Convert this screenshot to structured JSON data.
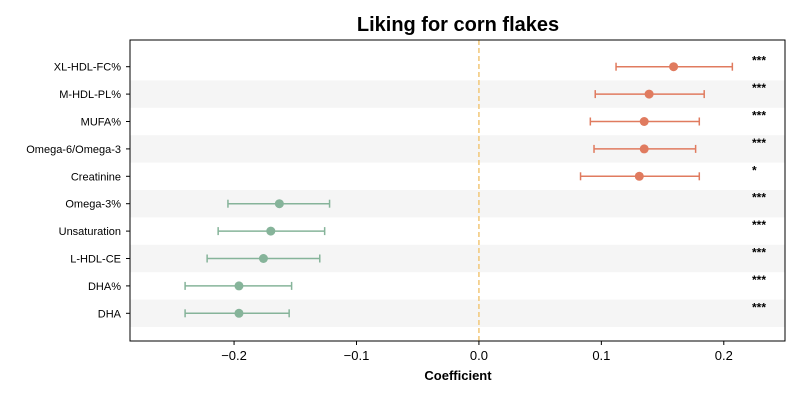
{
  "chart_data": {
    "type": "scatter",
    "title": "Liking for corn flakes",
    "xlabel": "Coefficient",
    "ylabel": "",
    "xlim": [
      -0.285,
      0.25
    ],
    "xticks": [
      {
        "value": -0.2,
        "label": "−0.2"
      },
      {
        "value": -0.1,
        "label": "−0.1"
      },
      {
        "value": 0.0,
        "label": "0.0"
      },
      {
        "value": 0.1,
        "label": "0.1"
      },
      {
        "value": 0.2,
        "label": "0.2"
      }
    ],
    "reference_line": 0.0,
    "row_banding": true,
    "colors": {
      "positive": "#e07b5f",
      "negative": "#86b49a",
      "reference": "#f2c777",
      "band": "#f5f5f5"
    },
    "points": [
      {
        "label": "XL-HDL-FC%",
        "estimate": 0.159,
        "ci_low": 0.112,
        "ci_high": 0.207,
        "significance": "***"
      },
      {
        "label": "M-HDL-PL%",
        "estimate": 0.139,
        "ci_low": 0.095,
        "ci_high": 0.184,
        "significance": "***"
      },
      {
        "label": "MUFA%",
        "estimate": 0.135,
        "ci_low": 0.091,
        "ci_high": 0.18,
        "significance": "***"
      },
      {
        "label": "Omega-6/Omega-3",
        "estimate": 0.135,
        "ci_low": 0.094,
        "ci_high": 0.177,
        "significance": "***"
      },
      {
        "label": "Creatinine",
        "estimate": 0.131,
        "ci_low": 0.083,
        "ci_high": 0.18,
        "significance": "*"
      },
      {
        "label": "Omega-3%",
        "estimate": -0.163,
        "ci_low": -0.205,
        "ci_high": -0.122,
        "significance": "***"
      },
      {
        "label": "Unsaturation",
        "estimate": -0.17,
        "ci_low": -0.213,
        "ci_high": -0.126,
        "significance": "***"
      },
      {
        "label": "L-HDL-CE",
        "estimate": -0.176,
        "ci_low": -0.222,
        "ci_high": -0.13,
        "significance": "***"
      },
      {
        "label": "DHA%",
        "estimate": -0.196,
        "ci_low": -0.24,
        "ci_high": -0.153,
        "significance": "***"
      },
      {
        "label": "DHA",
        "estimate": -0.196,
        "ci_low": -0.24,
        "ci_high": -0.155,
        "significance": "***"
      }
    ]
  }
}
